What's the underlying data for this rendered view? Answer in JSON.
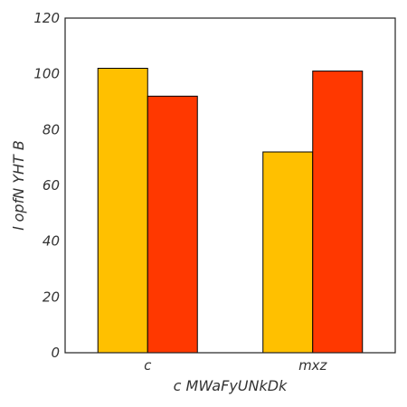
{
  "chart_data": {
    "type": "bar",
    "xlabel": "c MWaFyUNkDk",
    "ylabel": "l opfN YHT B",
    "categories": [
      "c",
      "mxz"
    ],
    "series": [
      {
        "values": [
          102,
          72
        ],
        "color": "#ffc000"
      },
      {
        "values": [
          92,
          101
        ],
        "color": "#ff3800"
      }
    ],
    "ylim": [
      0,
      120
    ],
    "yticks": [
      0,
      20,
      40,
      60,
      80,
      100,
      120
    ],
    "grid": false,
    "legend": "none"
  }
}
